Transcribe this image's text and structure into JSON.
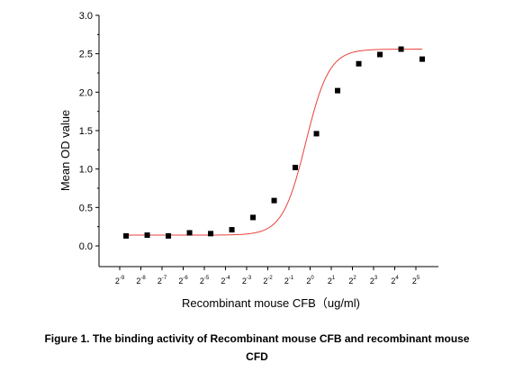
{
  "chart_data": {
    "type": "scatter",
    "xlabel": "Recombinant mouse CFB（ug/ml)",
    "ylabel": "Mean OD value",
    "x_scale": "log2",
    "ylim": [
      0,
      3.0
    ],
    "y_ticks": [
      "0.0",
      "0.5",
      "1.0",
      "1.5",
      "2.0",
      "2.5",
      "3.0"
    ],
    "x_ticks": [
      {
        "base": "2",
        "exp": "-9"
      },
      {
        "base": "2",
        "exp": "-8"
      },
      {
        "base": "2",
        "exp": "-7"
      },
      {
        "base": "2",
        "exp": "-6"
      },
      {
        "base": "2",
        "exp": "-5"
      },
      {
        "base": "2",
        "exp": "-4"
      },
      {
        "base": "2",
        "exp": "-3"
      },
      {
        "base": "2",
        "exp": "-2"
      },
      {
        "base": "2",
        "exp": "-1"
      },
      {
        "base": "2",
        "exp": "0"
      },
      {
        "base": "2",
        "exp": "1"
      },
      {
        "base": "2",
        "exp": "2"
      },
      {
        "base": "2",
        "exp": "3"
      },
      {
        "base": "2",
        "exp": "4"
      },
      {
        "base": "2",
        "exp": "5"
      }
    ],
    "points": [
      {
        "x_log2": -8.7,
        "y": 0.13
      },
      {
        "x_log2": -7.7,
        "y": 0.14
      },
      {
        "x_log2": -6.7,
        "y": 0.13
      },
      {
        "x_log2": -5.7,
        "y": 0.17
      },
      {
        "x_log2": -4.7,
        "y": 0.16
      },
      {
        "x_log2": -3.7,
        "y": 0.21
      },
      {
        "x_log2": -2.7,
        "y": 0.37
      },
      {
        "x_log2": -1.7,
        "y": 0.59
      },
      {
        "x_log2": -0.7,
        "y": 1.02
      },
      {
        "x_log2": 0.3,
        "y": 1.46
      },
      {
        "x_log2": 1.3,
        "y": 2.02
      },
      {
        "x_log2": 2.3,
        "y": 2.37
      },
      {
        "x_log2": 3.3,
        "y": 2.49
      },
      {
        "x_log2": 4.3,
        "y": 2.56
      },
      {
        "x_log2": 5.3,
        "y": 2.43
      }
    ],
    "fit_curve": {
      "model": "4PL",
      "bottom": 0.14,
      "top": 2.56,
      "ec50_log2": -0.2,
      "hill": 0.55
    },
    "colors": {
      "points": "#000000",
      "fit": "#e8413c",
      "axes": "#000000"
    },
    "grid": false,
    "legend": "none"
  },
  "caption": {
    "line1": "Figure 1. The binding activity of Recombinant mouse CFB and recombinant mouse",
    "line2": "CFD"
  }
}
